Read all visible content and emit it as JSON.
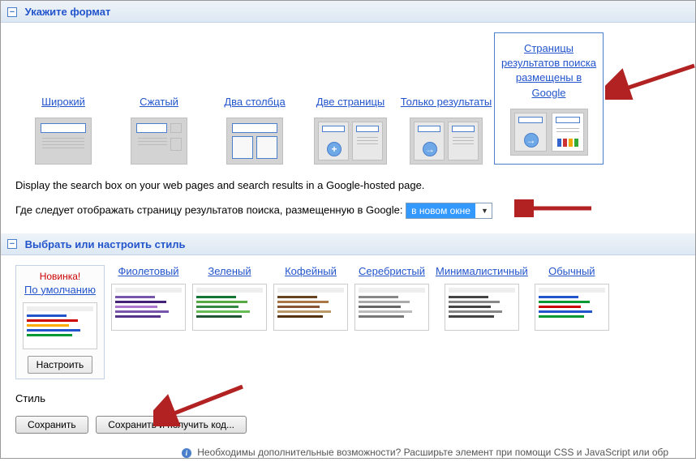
{
  "sections": {
    "format": {
      "title": "Укажите формат"
    },
    "style": {
      "title": "Выбрать или настроить стиль"
    }
  },
  "layouts": [
    {
      "label": "Широкий"
    },
    {
      "label": "Сжатый"
    },
    {
      "label": "Два столбца"
    },
    {
      "label": "Две страницы"
    },
    {
      "label": "Только результаты"
    },
    {
      "label": "Страницы результатов поиска размещены в Google"
    }
  ],
  "description": "Display the search box on your web pages and search results in a Google-hosted page.",
  "dropdown": {
    "label": "Где следует отображать страницу результатов поиска, размещенную в Google:",
    "selected": "в новом окне"
  },
  "styles": {
    "new_label": "Новинка!",
    "options": [
      {
        "label": "По умолчанию",
        "colors": [
          "#2255cc",
          "#cc0000",
          "#ffaa00",
          "#2255cc",
          "#009933"
        ]
      },
      {
        "label": "Фиолетовый",
        "colors": [
          "#7755aa",
          "#442277",
          "#aa77cc",
          "#7755aa",
          "#553388"
        ]
      },
      {
        "label": "Зеленый",
        "colors": [
          "#117733",
          "#55aa44",
          "#338844",
          "#66bb55",
          "#225533"
        ]
      },
      {
        "label": "Кофейный",
        "colors": [
          "#664422",
          "#aa7744",
          "#885533",
          "#bb9966",
          "#553311"
        ]
      },
      {
        "label": "Серебристый",
        "colors": [
          "#888888",
          "#aaaaaa",
          "#666666",
          "#bbbbbb",
          "#777777"
        ]
      },
      {
        "label": "Минималистичный",
        "colors": [
          "#444444",
          "#888888",
          "#444444",
          "#888888",
          "#444444"
        ]
      },
      {
        "label": "Обычный",
        "colors": [
          "#2255cc",
          "#009933",
          "#cc0000",
          "#2255cc",
          "#009933"
        ]
      }
    ],
    "customize_button": "Настроить",
    "style_label": "Стиль"
  },
  "buttons": {
    "save": "Сохранить",
    "save_and_code": "Сохранить и получить код..."
  },
  "footer_hint": "Необходимы дополнительные возможности? Расширьте элемент при помощи CSS и JavaScript или обр",
  "arrow_color": "#b22222"
}
